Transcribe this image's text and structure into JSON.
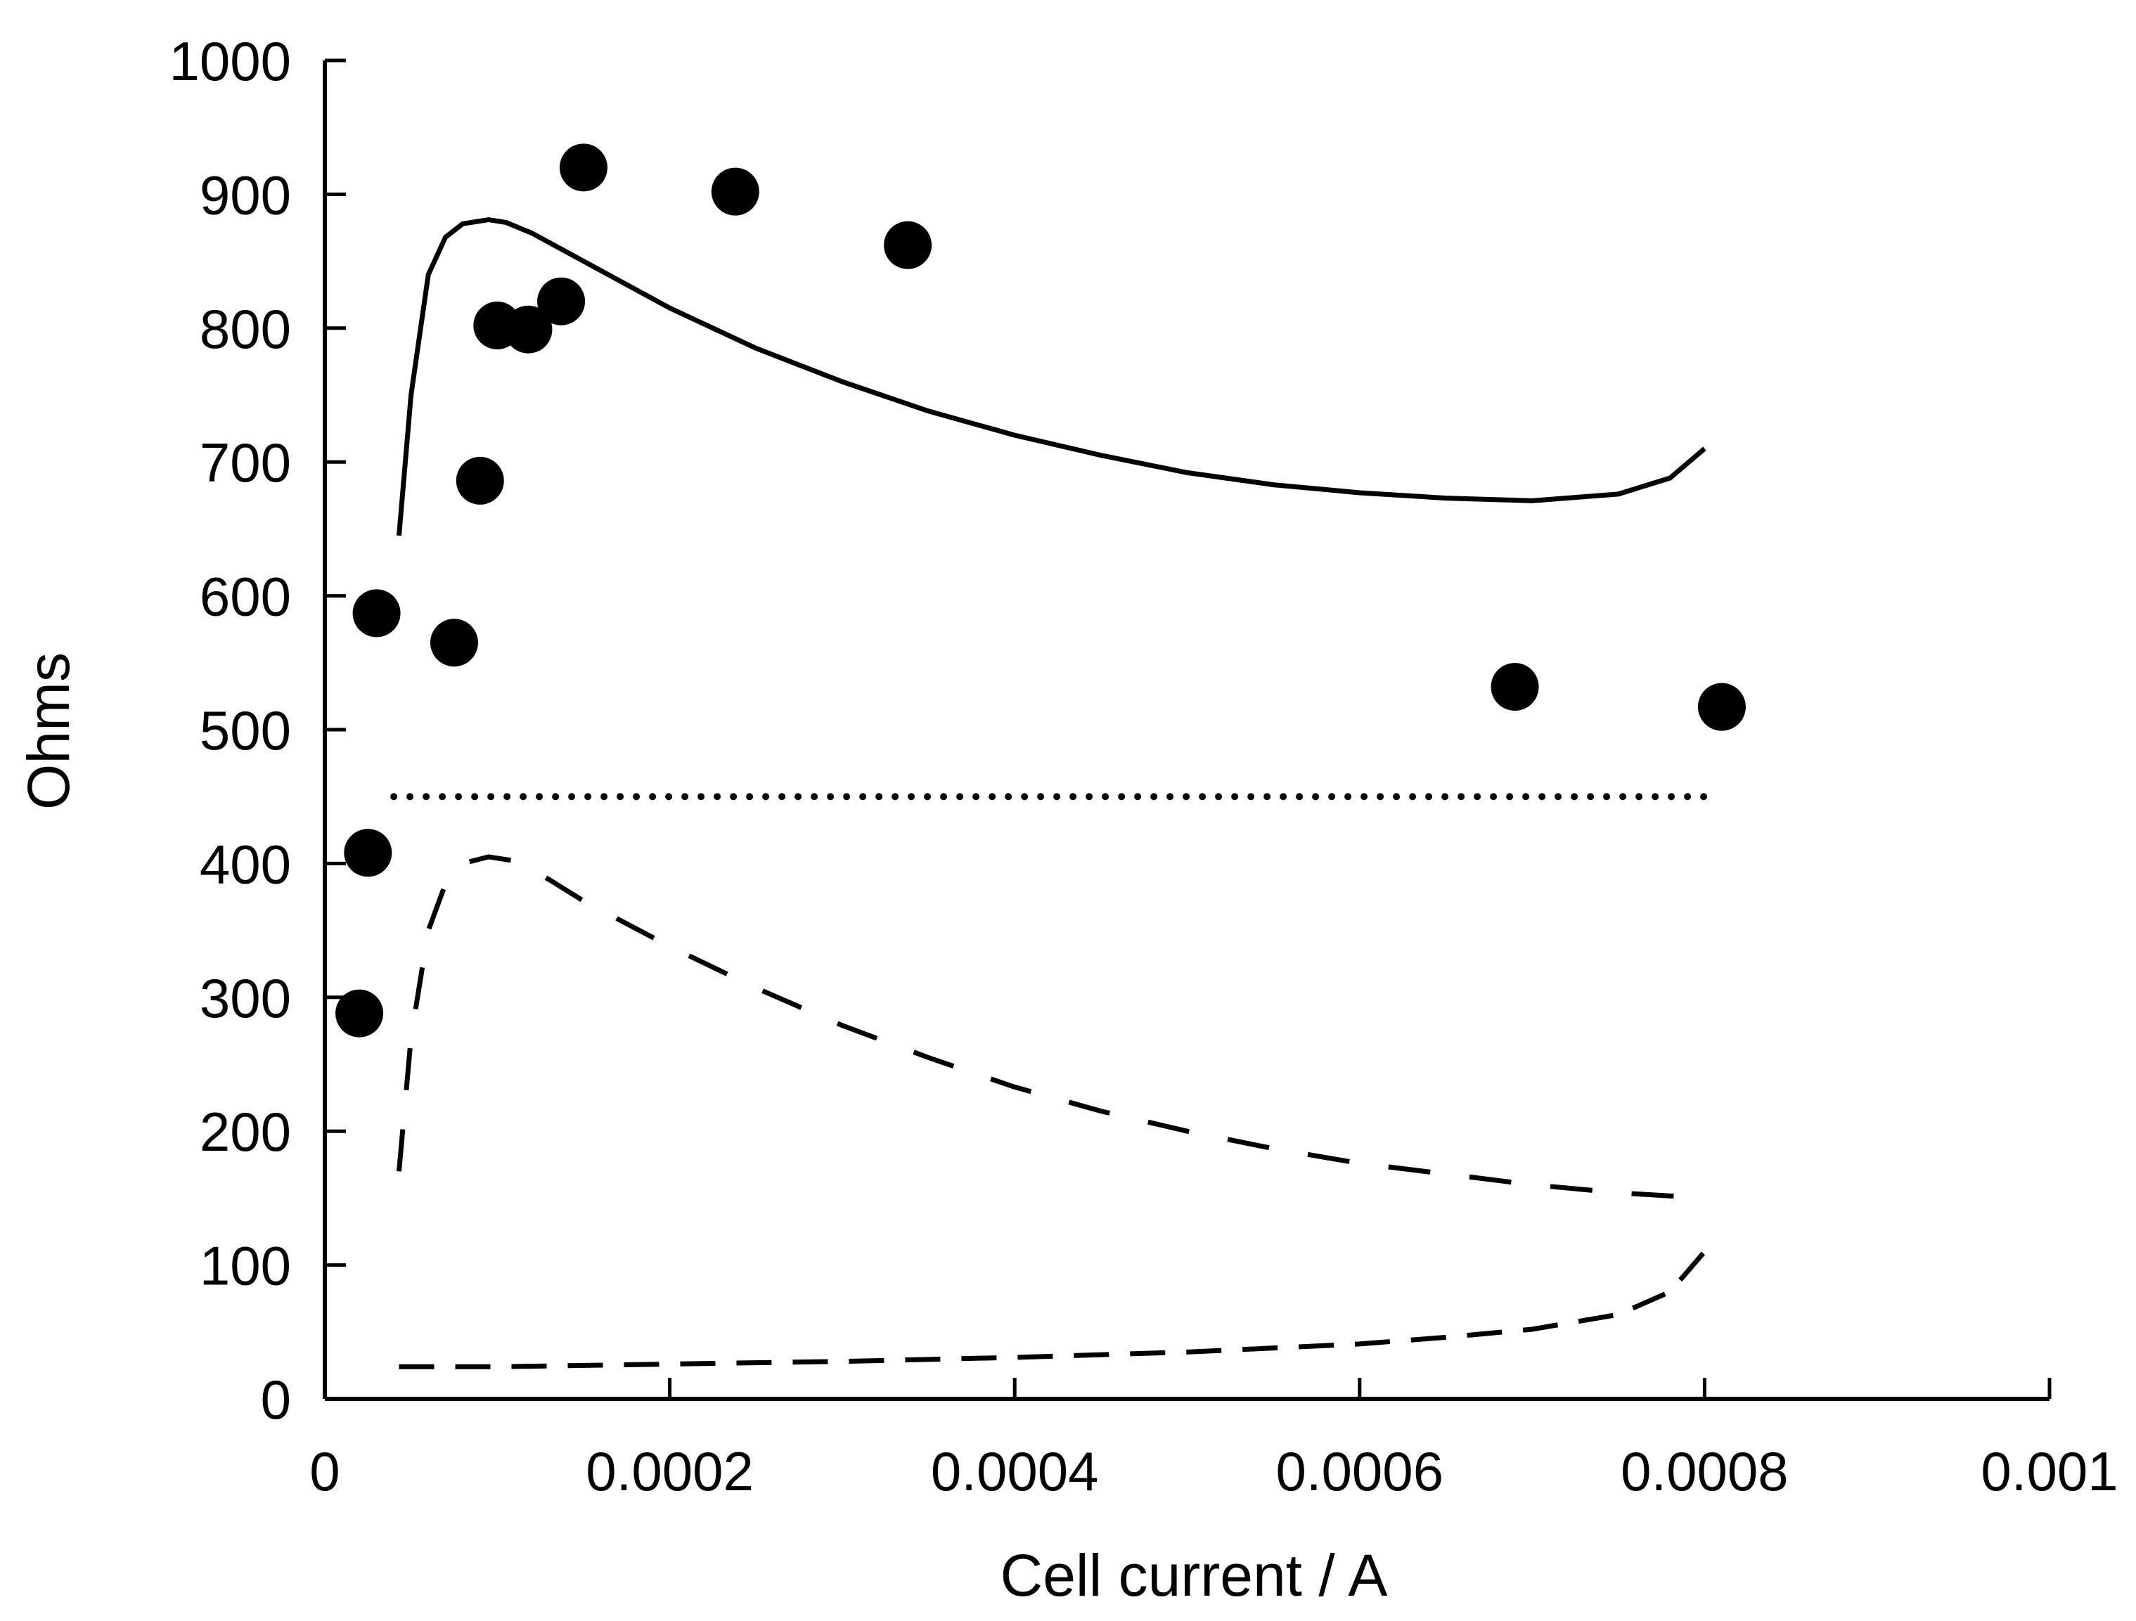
{
  "chart_data": {
    "type": "scatter",
    "xlabel": "Cell current / A",
    "ylabel": "Ohms",
    "xlim": [
      0,
      0.001
    ],
    "ylim": [
      0,
      1000
    ],
    "x_ticks": [
      "0",
      "0.0002",
      "0.0004",
      "0.0006",
      "0.0008",
      "0.001"
    ],
    "y_ticks": [
      "0",
      "100",
      "200",
      "300",
      "400",
      "500",
      "600",
      "700",
      "800",
      "900",
      "1000"
    ],
    "grid": false,
    "legend": "none",
    "series": [
      {
        "style": "markers",
        "color": "#000000",
        "points": [
          [
            2e-05,
            288
          ],
          [
            2.5e-05,
            408
          ],
          [
            3e-05,
            587
          ],
          [
            7.5e-05,
            565
          ],
          [
            9e-05,
            686
          ],
          [
            0.0001,
            802
          ],
          [
            0.000118,
            799
          ],
          [
            0.000137,
            820
          ],
          [
            0.00015,
            920
          ],
          [
            0.000238,
            902
          ],
          [
            0.000338,
            862
          ],
          [
            0.00069,
            532
          ],
          [
            0.00081,
            517
          ]
        ]
      },
      {
        "style": "solid",
        "color": "#000000",
        "points": [
          [
            4.3e-05,
            645
          ],
          [
            5e-05,
            750
          ],
          [
            6e-05,
            840
          ],
          [
            7e-05,
            868
          ],
          [
            8e-05,
            878
          ],
          [
            9.5e-05,
            881
          ],
          [
            0.000105,
            879
          ],
          [
            0.00012,
            871
          ],
          [
            0.00015,
            850
          ],
          [
            0.0002,
            815
          ],
          [
            0.00025,
            785
          ],
          [
            0.0003,
            760
          ],
          [
            0.00035,
            738
          ],
          [
            0.0004,
            720
          ],
          [
            0.00045,
            705
          ],
          [
            0.0005,
            692
          ],
          [
            0.00055,
            683
          ],
          [
            0.0006,
            677
          ],
          [
            0.00065,
            673
          ],
          [
            0.0007,
            671
          ],
          [
            0.00075,
            676
          ],
          [
            0.00078,
            688
          ],
          [
            0.0008,
            710
          ]
        ]
      },
      {
        "style": "dotted",
        "color": "#000000",
        "points": [
          [
            4e-05,
            450
          ],
          [
            0.0008,
            450
          ]
        ]
      },
      {
        "style": "dash-dot",
        "color": "#000000",
        "points": [
          [
            4.3e-05,
            170
          ],
          [
            5e-05,
            270
          ],
          [
            6e-05,
            350
          ],
          [
            7e-05,
            385
          ],
          [
            8e-05,
            400
          ],
          [
            9.5e-05,
            405
          ],
          [
            0.00011,
            402
          ],
          [
            0.00013,
            388
          ],
          [
            0.00015,
            372
          ],
          [
            0.0002,
            338
          ],
          [
            0.00025,
            307
          ],
          [
            0.0003,
            279
          ],
          [
            0.00035,
            255
          ],
          [
            0.0004,
            233
          ],
          [
            0.00045,
            215
          ],
          [
            0.0005,
            200
          ],
          [
            0.00055,
            187
          ],
          [
            0.0006,
            176
          ],
          [
            0.00065,
            168
          ],
          [
            0.0007,
            160
          ],
          [
            0.00075,
            154
          ],
          [
            0.0008,
            150
          ]
        ]
      },
      {
        "style": "dashed",
        "color": "#000000",
        "points": [
          [
            4.3e-05,
            24
          ],
          [
            0.0001,
            24
          ],
          [
            0.0002,
            26
          ],
          [
            0.0003,
            28
          ],
          [
            0.0004,
            31
          ],
          [
            0.0005,
            35
          ],
          [
            0.0006,
            41
          ],
          [
            0.00065,
            46
          ],
          [
            0.0007,
            52
          ],
          [
            0.00075,
            63
          ],
          [
            0.00078,
            80
          ],
          [
            0.0008,
            110
          ]
        ]
      }
    ]
  }
}
